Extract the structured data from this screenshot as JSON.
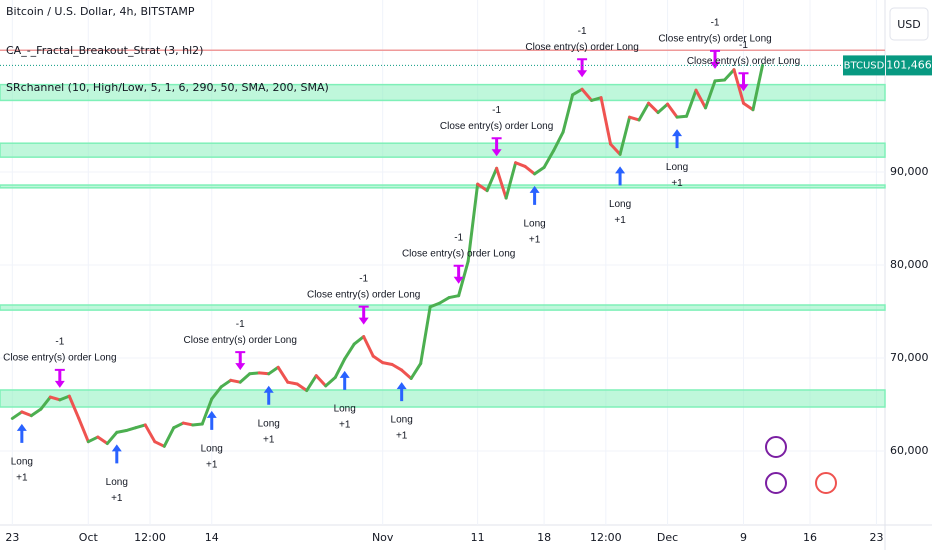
{
  "chart_data": {
    "type": "line",
    "title": "Bitcoin / U.S. Dollar, 4h, BITSTAMP",
    "indicators": [
      "CA_-_Fractal_Breakout_Strat (3, hl2)",
      "SRchannel (10, High/Low, 5, 1, 6, 290, 50, SMA, 200, SMA)"
    ],
    "currency": "USD",
    "symbol": "BTCUSD",
    "price_label": {
      "value": 101466,
      "label": "101,466"
    },
    "resistance_line": 103100,
    "up_color": "#4caf50",
    "down_color": "#ef5350",
    "band_color": "#7ff0b8",
    "x": [
      0,
      1,
      2,
      3,
      4,
      5,
      6,
      7,
      8,
      9,
      10,
      11,
      12,
      13,
      14,
      15,
      16,
      17,
      18,
      19,
      20,
      21,
      22,
      23,
      24,
      25,
      26,
      27,
      28,
      29,
      30,
      31,
      32,
      33,
      34,
      35,
      36,
      37,
      38,
      39,
      40,
      41,
      42,
      43,
      44,
      45,
      46,
      47,
      48,
      49,
      50,
      51,
      52,
      53,
      54,
      55,
      56,
      57,
      58,
      59,
      60,
      61,
      62,
      63,
      64,
      65,
      66,
      67,
      68,
      69,
      70,
      71,
      72,
      73,
      74,
      75,
      76,
      77,
      78,
      79
    ],
    "values": [
      63500,
      64200,
      63800,
      64500,
      65800,
      65500,
      65900,
      63500,
      61000,
      61500,
      60800,
      62000,
      62200,
      62500,
      62800,
      61000,
      60500,
      62500,
      63000,
      62800,
      62900,
      65600,
      66900,
      67600,
      67400,
      68300,
      68400,
      68300,
      69000,
      67400,
      67200,
      66500,
      68100,
      67000,
      67900,
      69900,
      71500,
      72300,
      70200,
      69500,
      69300,
      68700,
      67800,
      69400,
      75500,
      75900,
      76500,
      76700,
      80400,
      88700,
      88000,
      90400,
      87200,
      91000,
      90600,
      89800,
      90500,
      92300,
      94300,
      98300,
      98900,
      97700,
      98000,
      93000,
      91900,
      95900,
      95600,
      97400,
      96400,
      97300,
      95900,
      96000,
      98800,
      96900,
      99800,
      99900,
      101000,
      97400,
      96700,
      101466
    ],
    "bands": [
      [
        97700,
        99400
      ],
      [
        91600,
        93100
      ],
      [
        88300,
        88600
      ],
      [
        75150,
        75700
      ],
      [
        64730,
        66560
      ]
    ],
    "signals": [
      {
        "day": 1,
        "side": "long",
        "label": "Long",
        "qty": "+1"
      },
      {
        "day": 5,
        "side": "close",
        "label": "Close entry(s) order Long",
        "qty": "-1"
      },
      {
        "day": 11,
        "side": "long",
        "label": "Long",
        "qty": "+1"
      },
      {
        "day": 21,
        "side": "long",
        "label": "Long",
        "qty": "+1"
      },
      {
        "day": 24,
        "side": "close",
        "label": "Close entry(s) order Long",
        "qty": "-1"
      },
      {
        "day": 27,
        "side": "long",
        "label": "Long",
        "qty": "+1"
      },
      {
        "day": 35,
        "side": "long",
        "label": "Long",
        "qty": "+1"
      },
      {
        "day": 37,
        "side": "close",
        "label": "Close entry(s) order Long",
        "qty": "-1"
      },
      {
        "day": 41,
        "side": "long",
        "label": "Long",
        "qty": "+1"
      },
      {
        "day": 47,
        "side": "close",
        "label": "Close entry(s) order Long",
        "qty": "-1"
      },
      {
        "day": 51,
        "side": "close",
        "label": "Close entry(s) order Long",
        "qty": "-1"
      },
      {
        "day": 55,
        "side": "long",
        "label": "Long",
        "qty": "+1"
      },
      {
        "day": 60,
        "side": "close",
        "label": "Close entry(s) order Long",
        "qty": "-1"
      },
      {
        "day": 64,
        "side": "long",
        "label": "Long",
        "qty": "+1"
      },
      {
        "day": 70,
        "side": "long",
        "label": "Long",
        "qty": "+1"
      },
      {
        "day": 74,
        "side": "close",
        "label": "Close entry(s) order Long",
        "qty": "-1"
      },
      {
        "day": 77,
        "side": "close",
        "label": "Close entry(s) order Long",
        "qty": "-1"
      }
    ],
    "xlim": [
      -1.3,
      91.9
    ],
    "xticks": [
      {
        "value": 0,
        "label": "23"
      },
      {
        "value": 8,
        "label": "Oct"
      },
      {
        "value": 14.5,
        "label": "12:00"
      },
      {
        "value": 21,
        "label": "14"
      },
      {
        "value": 39,
        "label": "Nov"
      },
      {
        "value": 49,
        "label": "11"
      },
      {
        "value": 56,
        "label": "18"
      },
      {
        "value": 62.5,
        "label": "12:00"
      },
      {
        "value": 69,
        "label": "Dec"
      },
      {
        "value": 77,
        "label": "9"
      },
      {
        "value": 84,
        "label": "16"
      },
      {
        "value": 91,
        "label": "23"
      }
    ],
    "ylim": [
      52040,
      108500
    ],
    "yticks": [
      {
        "value": 60000,
        "label": "60,000"
      },
      {
        "value": 70000,
        "label": "70,000"
      },
      {
        "value": 80000,
        "label": "80,000"
      },
      {
        "value": 90000,
        "label": "90,000"
      }
    ]
  }
}
